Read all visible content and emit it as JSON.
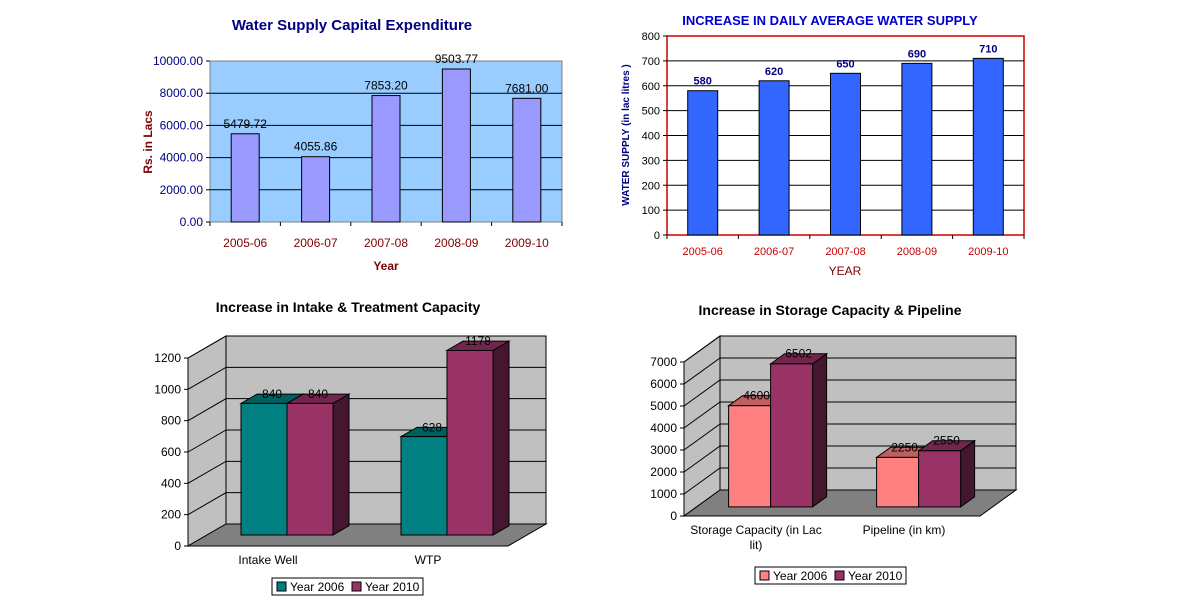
{
  "chart_data": [
    {
      "id": "capex",
      "type": "bar",
      "title": "Water Supply Capital Expenditure",
      "xlabel": "Year",
      "ylabel": "Rs. in Lacs",
      "categories": [
        "2005-06",
        "2006-07",
        "2007-08",
        "2008-09",
        "2009-10"
      ],
      "values": [
        5479.72,
        4055.86,
        7853.2,
        9503.77,
        7681.0
      ],
      "value_labels": [
        "5479.72",
        "4055.86",
        "7853.20",
        "9503.77",
        "7681.00"
      ],
      "ylim": [
        0,
        10000
      ],
      "yticks": [
        "0.00",
        "2000.00",
        "4000.00",
        "6000.00",
        "8000.00",
        "10000.00"
      ],
      "grid": true,
      "colors": {
        "plot_bg": "#99ccff",
        "bar": "#9999ff",
        "title": "#000080",
        "axis_label": "#800000"
      }
    },
    {
      "id": "supply",
      "type": "bar",
      "title": "INCREASE IN DAILY AVERAGE WATER SUPPLY",
      "xlabel": "YEAR",
      "ylabel": "WATER SUPPLY (in lac litres )",
      "categories": [
        "2005-06",
        "2006-07",
        "2007-08",
        "2008-09",
        "2009-10"
      ],
      "values": [
        580,
        620,
        650,
        690,
        710
      ],
      "value_labels": [
        "580",
        "620",
        "650",
        "690",
        "710"
      ],
      "ylim": [
        0,
        800
      ],
      "yticks": [
        "0",
        "100",
        "200",
        "300",
        "400",
        "500",
        "600",
        "700",
        "800"
      ],
      "grid": true,
      "colors": {
        "bar": "#3366ff",
        "frame": "#cc0000",
        "title": "#0000cc",
        "xlabel": "#800000",
        "ylabel": "#000080"
      }
    },
    {
      "id": "intake",
      "type": "bar",
      "title": "Increase in Intake & Treatment  Capacity",
      "categories": [
        "Intake Well",
        "WTP"
      ],
      "series": [
        {
          "name": "Year 2006",
          "values": [
            840,
            628
          ],
          "value_labels": [
            "840",
            "628"
          ]
        },
        {
          "name": "Year 2010",
          "values": [
            840,
            1178
          ],
          "value_labels": [
            "840",
            "1178"
          ]
        }
      ],
      "ylim": [
        0,
        1200
      ],
      "yticks": [
        "0",
        "200",
        "400",
        "600",
        "800",
        "1000",
        "1200"
      ],
      "grid": true,
      "legend": "bottom",
      "colors": {
        "series0": "#008080",
        "series1": "#993366",
        "wall": "#c0c0c0",
        "floor": "#808080"
      }
    },
    {
      "id": "storage",
      "type": "bar",
      "title": "Increase in Storage Capacity & Pipeline",
      "categories": [
        "Storage Capacity (in  Lac lit)",
        "Pipeline (in km)"
      ],
      "category_lines": [
        [
          "Storage Capacity (in  Lac",
          "lit)"
        ],
        [
          "Pipeline (in km)"
        ]
      ],
      "series": [
        {
          "name": "Year 2006",
          "values": [
            4600,
            2250
          ],
          "value_labels": [
            "4600",
            "2250"
          ]
        },
        {
          "name": "Year 2010",
          "values": [
            6502,
            2550
          ],
          "value_labels": [
            "6502",
            "2550"
          ]
        }
      ],
      "ylim": [
        0,
        7000
      ],
      "yticks": [
        "0",
        "1000",
        "2000",
        "3000",
        "4000",
        "5000",
        "6000",
        "7000"
      ],
      "grid": true,
      "legend": "bottom",
      "colors": {
        "series0": "#ff8080",
        "series1": "#993366",
        "wall": "#c0c0c0",
        "floor": "#808080"
      }
    }
  ]
}
